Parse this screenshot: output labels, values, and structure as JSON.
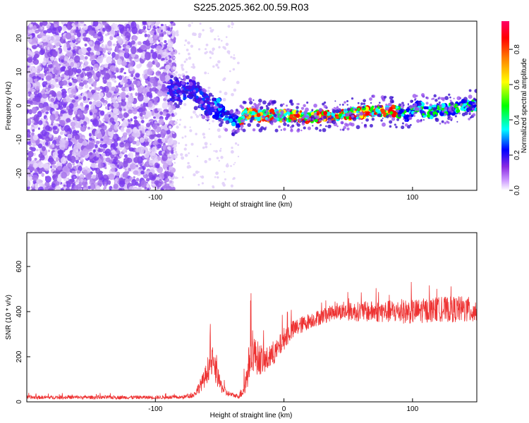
{
  "title": "S225.2025.362.00.59.R03",
  "chart_data": [
    {
      "type": "heatmap",
      "xlabel": "Height of straight line (km)",
      "ylabel": "Frequency (Hz)",
      "xlim": [
        -200,
        150
      ],
      "ylim": [
        -25,
        25
      ],
      "xticks": [
        -100,
        0,
        100
      ],
      "xtick_labels": [
        "-100",
        "0",
        "100"
      ],
      "yticks": [
        -20,
        -10,
        0,
        10,
        20
      ],
      "ytick_labels": [
        "-20",
        "-10",
        "0",
        "10",
        "20"
      ],
      "colorbar": {
        "label": "Normalized spectral amplitude",
        "range": [
          0,
          0.96
        ],
        "ticks": [
          0.0,
          0.2,
          0.4,
          0.6,
          0.8
        ],
        "tick_labels": [
          "0.0",
          "0.2",
          "0.4",
          "0.6",
          "0.8"
        ],
        "colormap": [
          "#ffffff",
          "#cc99ff",
          "#8a2be2",
          "#0000ff",
          "#00ffff",
          "#00ff00",
          "#ffff00",
          "#ff8000",
          "#ff0000",
          "#ff0066"
        ]
      },
      "ridge": {
        "x": [
          -90,
          -80,
          -75,
          -70,
          -65,
          -60,
          -55,
          -50,
          -45,
          -40,
          -35,
          -30,
          -25,
          -20,
          -10,
          0,
          10,
          20,
          30,
          40,
          50,
          60,
          70,
          80,
          90,
          95,
          100,
          105,
          110,
          115,
          120,
          130,
          140,
          150
        ],
        "freq": [
          5,
          4,
          5,
          4,
          2,
          0,
          -1,
          -1,
          -3,
          -4,
          -5,
          -2.5,
          -2.5,
          -3,
          -3,
          -3,
          -3,
          -3.5,
          -3,
          -3,
          -2.5,
          -2,
          -1.5,
          -1.5,
          -2,
          -3,
          -1,
          0,
          -2,
          -2,
          -1,
          -1,
          0,
          0
        ]
      }
    },
    {
      "type": "line",
      "xlabel": "Height of straight line (km)",
      "ylabel": "SNR (10 * v/v)",
      "xlim": [
        -200,
        150
      ],
      "ylim": [
        0,
        750
      ],
      "xticks": [
        -100,
        0,
        100
      ],
      "xtick_labels": [
        "-100",
        "0",
        "100"
      ],
      "yticks": [
        0,
        200,
        400,
        600
      ],
      "ytick_labels": [
        "0",
        "200",
        "400",
        "600"
      ],
      "color": "#ee3333",
      "envelope": {
        "x": [
          -200,
          -80,
          -70,
          -62,
          -57,
          -54,
          -50,
          -45,
          -40,
          -35,
          -30,
          -25,
          -22,
          -15,
          -10,
          -5,
          0,
          5,
          10,
          20,
          30,
          40,
          50,
          60,
          80,
          100,
          120,
          140,
          150
        ],
        "mean": [
          20,
          20,
          30,
          100,
          180,
          150,
          80,
          40,
          30,
          25,
          70,
          250,
          200,
          180,
          200,
          230,
          280,
          310,
          330,
          360,
          380,
          400,
          400,
          400,
          400,
          400,
          410,
          410,
          400
        ],
        "noise": [
          8,
          8,
          12,
          40,
          70,
          60,
          35,
          15,
          10,
          10,
          50,
          110,
          80,
          60,
          50,
          50,
          50,
          45,
          40,
          35,
          35,
          35,
          40,
          45,
          50,
          55,
          55,
          60,
          60
        ]
      }
    }
  ]
}
